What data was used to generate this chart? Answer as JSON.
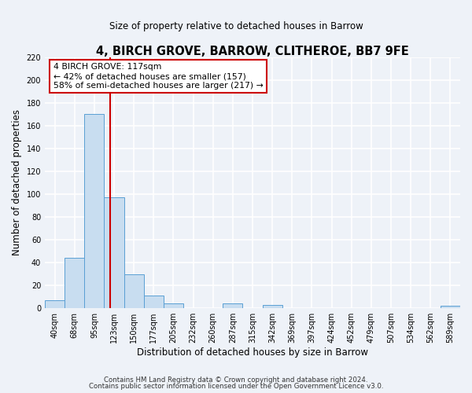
{
  "title": "4, BIRCH GROVE, BARROW, CLITHEROE, BB7 9FE",
  "subtitle": "Size of property relative to detached houses in Barrow",
  "xlabel": "Distribution of detached houses by size in Barrow",
  "ylabel": "Number of detached properties",
  "bin_labels": [
    "40sqm",
    "68sqm",
    "95sqm",
    "123sqm",
    "150sqm",
    "177sqm",
    "205sqm",
    "232sqm",
    "260sqm",
    "287sqm",
    "315sqm",
    "342sqm",
    "369sqm",
    "397sqm",
    "424sqm",
    "452sqm",
    "479sqm",
    "507sqm",
    "534sqm",
    "562sqm",
    "589sqm"
  ],
  "bar_values": [
    7,
    44,
    170,
    97,
    30,
    11,
    4,
    0,
    0,
    4,
    0,
    3,
    0,
    0,
    0,
    0,
    0,
    0,
    0,
    0,
    2
  ],
  "bar_color": "#c8ddf0",
  "bar_edge_color": "#5a9fd4",
  "property_line_label": "4 BIRCH GROVE: 117sqm",
  "annotation_line1": "← 42% of detached houses are smaller (157)",
  "annotation_line2": "58% of semi-detached houses are larger (217) →",
  "annotation_box_color": "#ffffff",
  "annotation_box_edge": "#cc0000",
  "red_line_color": "#cc0000",
  "ylim": [
    0,
    220
  ],
  "yticks": [
    0,
    20,
    40,
    60,
    80,
    100,
    120,
    140,
    160,
    180,
    200,
    220
  ],
  "footer_line1": "Contains HM Land Registry data © Crown copyright and database right 2024.",
  "footer_line2": "Contains public sector information licensed under the Open Government Licence v3.0.",
  "bg_color": "#eef2f8",
  "plot_bg_color": "#eef2f8",
  "grid_color": "#ffffff"
}
